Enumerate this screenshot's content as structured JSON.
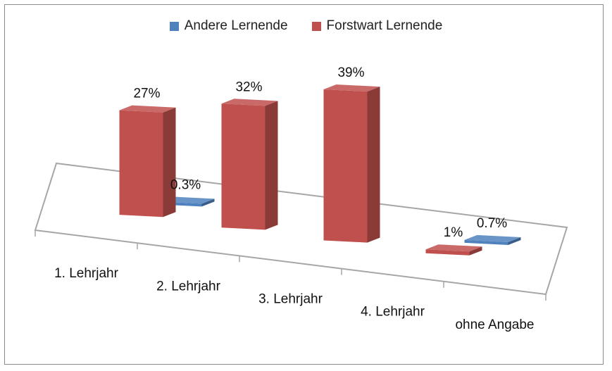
{
  "chart_data": {
    "type": "bar",
    "categories": [
      "1. Lehrjahr",
      "2. Lehrjahr",
      "3. Lehrjahr",
      "4. Lehrjahr",
      "ohne Angabe"
    ],
    "series": [
      {
        "name": "Andere Lernende",
        "color": "#4f81bd",
        "values": [
          null,
          0.3,
          null,
          null,
          0.7
        ],
        "labels": [
          "",
          "0.3%",
          "",
          "",
          "0.7%"
        ]
      },
      {
        "name": "Forstwart Lernende",
        "color": "#c0504d",
        "values": [
          27,
          32,
          39,
          1,
          null
        ],
        "labels": [
          "27%",
          "32%",
          "39%",
          "1%",
          ""
        ]
      }
    ],
    "unit": "%",
    "legend_position": "top",
    "chart_style": "3d-columns"
  }
}
